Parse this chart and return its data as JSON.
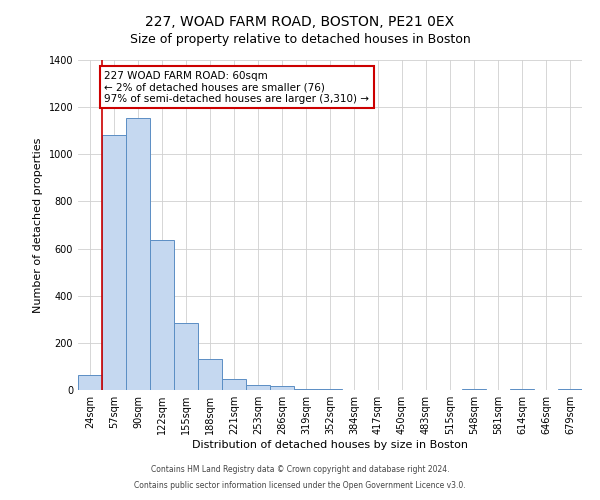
{
  "title": "227, WOAD FARM ROAD, BOSTON, PE21 0EX",
  "subtitle": "Size of property relative to detached houses in Boston",
  "xlabel": "Distribution of detached houses by size in Boston",
  "ylabel": "Number of detached properties",
  "bar_labels": [
    "24sqm",
    "57sqm",
    "90sqm",
    "122sqm",
    "155sqm",
    "188sqm",
    "221sqm",
    "253sqm",
    "286sqm",
    "319sqm",
    "352sqm",
    "384sqm",
    "417sqm",
    "450sqm",
    "483sqm",
    "515sqm",
    "548sqm",
    "581sqm",
    "614sqm",
    "646sqm",
    "679sqm"
  ],
  "bar_values": [
    65,
    1080,
    1155,
    635,
    285,
    130,
    47,
    20,
    15,
    5,
    5,
    0,
    0,
    0,
    0,
    0,
    5,
    0,
    5,
    0,
    5
  ],
  "bar_color": "#c5d8f0",
  "bar_edge_color": "#5b8ec4",
  "vline_x_idx": 1,
  "vline_color": "#cc0000",
  "annotation_text": "227 WOAD FARM ROAD: 60sqm\n← 2% of detached houses are smaller (76)\n97% of semi-detached houses are larger (3,310) →",
  "annotation_box_color": "#ffffff",
  "annotation_box_edge": "#cc0000",
  "ylim": [
    0,
    1400
  ],
  "yticks": [
    0,
    200,
    400,
    600,
    800,
    1000,
    1200,
    1400
  ],
  "footer1": "Contains HM Land Registry data © Crown copyright and database right 2024.",
  "footer2": "Contains public sector information licensed under the Open Government Licence v3.0.",
  "bg_color": "#ffffff",
  "grid_color": "#d0d0d0",
  "title_fontsize": 10,
  "subtitle_fontsize": 9,
  "axis_label_fontsize": 8,
  "tick_fontsize": 7,
  "annotation_fontsize": 7.5
}
